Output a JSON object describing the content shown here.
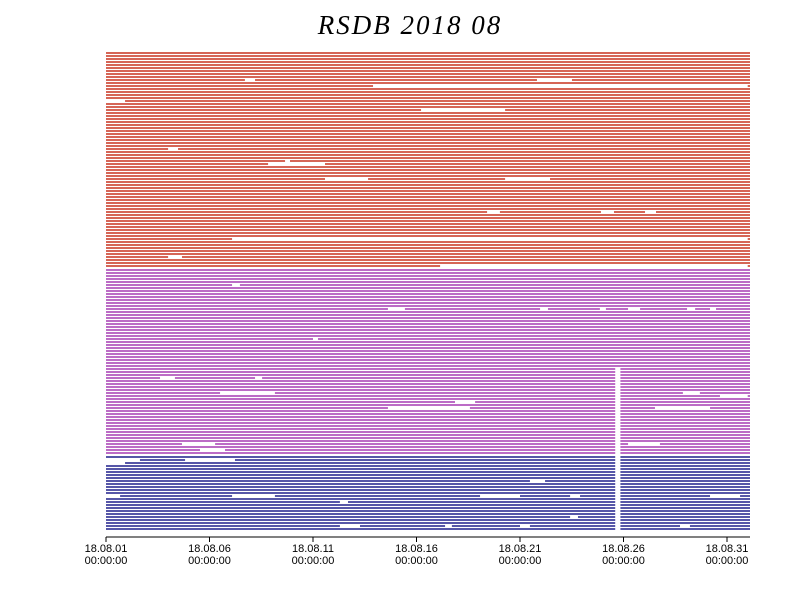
{
  "chart_data": {
    "type": "availability",
    "title": "RSDB  2018  08",
    "xlim": [
      1,
      32
    ],
    "xticks": [
      {
        "value": 1,
        "label": "18.08.01"
      },
      {
        "value": 6,
        "label": "18.08.06"
      },
      {
        "value": 11,
        "label": "18.08.11"
      },
      {
        "value": 16,
        "label": "18.08.16"
      },
      {
        "value": 21,
        "label": "18.08.21"
      },
      {
        "value": 26,
        "label": "18.08.26"
      },
      {
        "value": 31,
        "label": "18.08.31"
      }
    ],
    "xtick_times": [
      "00:00:00",
      "00:00:00",
      "00:00:00",
      "00:00:00",
      "00:00:00",
      "00:00:00",
      "00:00:00"
    ],
    "series": [
      {
        "color": "#c8321e",
        "gaps": [
          [],
          [],
          [],
          [],
          [],
          [],
          [],
          [],
          [],
          [
            [
              7.71,
              8.2
            ],
            [
              21.82,
              23.51
            ]
          ],
          [],
          [
            [
              13.9,
              32
            ]
          ],
          [],
          [],
          [],
          [],
          [
            [
              1,
              1.92
            ]
          ],
          [],
          [],
          [
            [
              16.22,
              20.28
            ]
          ],
          [],
          [],
          [],
          [],
          [],
          [],
          [],
          [],
          [],
          [],
          [],
          [],
          [
            [
              4,
              4.48
            ]
          ],
          [],
          [],
          [],
          [
            [
              9.65,
              9.89
            ]
          ],
          [
            [
              8.83,
              11.58
            ]
          ],
          [],
          [],
          [],
          [],
          [
            [
              11.58,
              13.66
            ],
            [
              20.28,
              22.45
            ]
          ],
          [],
          [],
          [],
          [],
          [],
          [],
          [],
          [],
          [],
          [],
          [
            [
              19.41,
              20.03
            ],
            [
              24.91,
              25.54
            ],
            [
              27.04,
              27.57
            ]
          ],
          [],
          [],
          [],
          [],
          [],
          [],
          [],
          [],
          [
            [
              7.09,
              32
            ]
          ],
          [],
          [],
          [],
          [],
          [],
          [
            [
              4,
              4.67
            ]
          ],
          [],
          [],
          [
            [
              17.14,
              32
            ]
          ]
        ]
      },
      {
        "color": "#a53cb4",
        "gaps": [
          [],
          [],
          [],
          [],
          [],
          [
            [
              7.09,
              7.47
            ]
          ],
          [],
          [],
          [],
          [],
          [],
          [],
          [],
          [
            [
              14.62,
              15.44
            ],
            [
              21.97,
              22.35
            ],
            [
              24.86,
              25.15
            ],
            [
              26.22,
              26.8
            ],
            [
              29.07,
              29.46
            ],
            [
              30.18,
              30.47
            ]
          ],
          [],
          [],
          [],
          [],
          [],
          [],
          [],
          [],
          [],
          [
            [
              11,
              11.24
            ]
          ],
          [],
          [],
          [],
          [],
          [],
          [],
          [],
          [],
          [],
          [
            [
              25.6,
              25.85
            ]
          ],
          [
            [
              25.6,
              25.85
            ]
          ],
          [
            [
              25.6,
              25.85
            ]
          ],
          [
            [
              3.61,
              4.33
            ],
            [
              8.2,
              8.54
            ],
            [
              25.6,
              25.85
            ]
          ],
          [
            [
              25.6,
              25.85
            ]
          ],
          [
            [
              25.6,
              25.85
            ]
          ],
          [
            [
              25.6,
              25.85
            ]
          ],
          [
            [
              25.6,
              25.85
            ]
          ],
          [
            [
              6.51,
              9.16
            ],
            [
              25.6,
              25.85
            ],
            [
              28.87,
              29.69
            ]
          ],
          [
            [
              25.6,
              25.85
            ],
            [
              30.66,
              32
            ]
          ],
          [
            [
              25.6,
              25.85
            ]
          ],
          [
            [
              17.86,
              18.83
            ],
            [
              25.6,
              25.85
            ]
          ],
          [
            [
              25.6,
              25.85
            ]
          ],
          [
            [
              14.62,
              18.58
            ],
            [
              25.6,
              25.85
            ],
            [
              27.52,
              30.18
            ]
          ],
          [
            [
              25.6,
              25.85
            ]
          ],
          [
            [
              25.6,
              25.85
            ]
          ],
          [
            [
              25.6,
              25.85
            ]
          ],
          [
            [
              25.6,
              25.85
            ]
          ],
          [
            [
              25.6,
              25.85
            ]
          ],
          [
            [
              25.6,
              25.85
            ]
          ],
          [
            [
              25.6,
              25.85
            ]
          ],
          [
            [
              25.6,
              25.85
            ]
          ],
          [
            [
              25.6,
              25.85
            ]
          ],
          [
            [
              25.6,
              25.85
            ]
          ],
          [
            [
              25.6,
              25.85
            ]
          ],
          [
            [
              4.67,
              6.27
            ],
            [
              25.6,
              25.85
            ],
            [
              26.22,
              27.76
            ]
          ],
          [
            [
              25.6,
              25.85
            ]
          ],
          [
            [
              5.54,
              6.75
            ],
            [
              25.6,
              25.85
            ]
          ],
          [
            [
              25.6,
              25.85
            ]
          ]
        ]
      },
      {
        "color": "#1e1e8c",
        "gaps": [
          [
            [
              25.6,
              25.85
            ]
          ],
          [
            [
              1,
              2.64
            ],
            [
              4.82,
              7.23
            ],
            [
              25.6,
              25.85
            ]
          ],
          [
            [
              1,
              1.92
            ],
            [
              25.6,
              25.85
            ]
          ],
          [
            [
              25.6,
              25.85
            ]
          ],
          [
            [
              25.6,
              25.85
            ]
          ],
          [
            [
              25.6,
              25.85
            ]
          ],
          [
            [
              25.6,
              25.85
            ]
          ],
          [
            [
              25.6,
              25.85
            ]
          ],
          [
            [
              21.48,
              22.21
            ],
            [
              25.6,
              25.85
            ]
          ],
          [
            [
              25.6,
              25.85
            ]
          ],
          [
            [
              25.6,
              25.85
            ]
          ],
          [
            [
              25.6,
              25.85
            ]
          ],
          [
            [
              25.6,
              25.85
            ]
          ],
          [
            [
              1,
              1.68
            ],
            [
              7.09,
              9.16
            ],
            [
              19.07,
              21
            ],
            [
              23.42,
              23.9
            ],
            [
              25.6,
              25.85
            ],
            [
              30.18,
              31.63
            ]
          ],
          [
            [
              25.6,
              25.85
            ]
          ],
          [
            [
              12.3,
              12.69
            ],
            [
              25.6,
              25.85
            ]
          ],
          [
            [
              25.6,
              25.85
            ]
          ],
          [
            [
              25.6,
              25.85
            ]
          ],
          [
            [
              25.6,
              25.85
            ]
          ],
          [
            [
              25.6,
              25.85
            ]
          ],
          [
            [
              23.42,
              23.8
            ],
            [
              25.6,
              25.85
            ]
          ],
          [
            [
              25.6,
              25.85
            ]
          ],
          [
            [
              25.6,
              25.85
            ]
          ],
          [
            [
              12.3,
              13.27
            ],
            [
              17.38,
              17.71
            ],
            [
              21,
              21.48
            ],
            [
              25.6,
              25.85
            ],
            [
              28.73,
              29.21
            ]
          ],
          [
            [
              25.6,
              25.85
            ]
          ]
        ]
      }
    ]
  }
}
